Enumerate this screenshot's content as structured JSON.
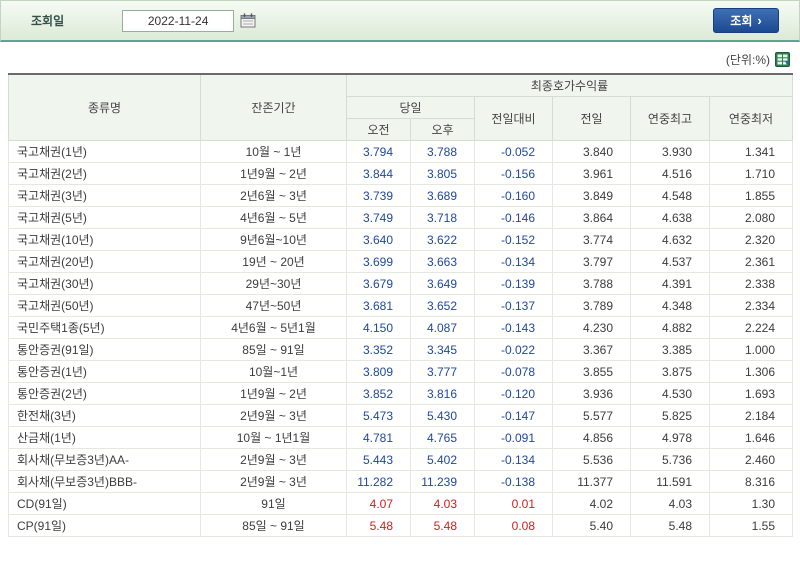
{
  "toolbar": {
    "date_label": "조회일",
    "date_value": "2022-11-24",
    "search_label": "조회",
    "search_arrow": "›"
  },
  "unit_label": "(단위:%)",
  "table": {
    "headers": {
      "type": "종류명",
      "period": "잔존기간",
      "yield_group": "최종호가수익률",
      "today": "당일",
      "am": "오전",
      "pm": "오후",
      "change": "전일대비",
      "prev": "전일",
      "year_high": "연중최고",
      "year_low": "연중최저"
    },
    "columns": [
      "type",
      "period",
      "am",
      "pm",
      "change",
      "prev",
      "high",
      "low"
    ],
    "rows": [
      {
        "type": "국고채권(1년)",
        "period": "10월 ~ 1년",
        "am": "3.794",
        "pm": "3.788",
        "change": "-0.052",
        "prev": "3.840",
        "high": "3.930",
        "low": "1.341",
        "trend": "down"
      },
      {
        "type": "국고채권(2년)",
        "period": "1년9월 ~ 2년",
        "am": "3.844",
        "pm": "3.805",
        "change": "-0.156",
        "prev": "3.961",
        "high": "4.516",
        "low": "1.710",
        "trend": "down"
      },
      {
        "type": "국고채권(3년)",
        "period": "2년6월 ~ 3년",
        "am": "3.739",
        "pm": "3.689",
        "change": "-0.160",
        "prev": "3.849",
        "high": "4.548",
        "low": "1.855",
        "trend": "down"
      },
      {
        "type": "국고채권(5년)",
        "period": "4년6월 ~ 5년",
        "am": "3.749",
        "pm": "3.718",
        "change": "-0.146",
        "prev": "3.864",
        "high": "4.638",
        "low": "2.080",
        "trend": "down"
      },
      {
        "type": "국고채권(10년)",
        "period": "9년6월~10년",
        "am": "3.640",
        "pm": "3.622",
        "change": "-0.152",
        "prev": "3.774",
        "high": "4.632",
        "low": "2.320",
        "trend": "down"
      },
      {
        "type": "국고채권(20년)",
        "period": "19년 ~ 20년",
        "am": "3.699",
        "pm": "3.663",
        "change": "-0.134",
        "prev": "3.797",
        "high": "4.537",
        "low": "2.361",
        "trend": "down"
      },
      {
        "type": "국고채권(30년)",
        "period": "29년~30년",
        "am": "3.679",
        "pm": "3.649",
        "change": "-0.139",
        "prev": "3.788",
        "high": "4.391",
        "low": "2.338",
        "trend": "down"
      },
      {
        "type": "국고채권(50년)",
        "period": "47년~50년",
        "am": "3.681",
        "pm": "3.652",
        "change": "-0.137",
        "prev": "3.789",
        "high": "4.348",
        "low": "2.334",
        "trend": "down"
      },
      {
        "type": "국민주택1종(5년)",
        "period": "4년6월 ~ 5년1월",
        "am": "4.150",
        "pm": "4.087",
        "change": "-0.143",
        "prev": "4.230",
        "high": "4.882",
        "low": "2.224",
        "trend": "down"
      },
      {
        "type": "통안증권(91일)",
        "period": "85일 ~ 91일",
        "am": "3.352",
        "pm": "3.345",
        "change": "-0.022",
        "prev": "3.367",
        "high": "3.385",
        "low": "1.000",
        "trend": "down"
      },
      {
        "type": "통안증권(1년)",
        "period": "10월~1년",
        "am": "3.809",
        "pm": "3.777",
        "change": "-0.078",
        "prev": "3.855",
        "high": "3.875",
        "low": "1.306",
        "trend": "down"
      },
      {
        "type": "통안증권(2년)",
        "period": "1년9월 ~ 2년",
        "am": "3.852",
        "pm": "3.816",
        "change": "-0.120",
        "prev": "3.936",
        "high": "4.530",
        "low": "1.693",
        "trend": "down"
      },
      {
        "type": "한전채(3년)",
        "period": "2년9월 ~ 3년",
        "am": "5.473",
        "pm": "5.430",
        "change": "-0.147",
        "prev": "5.577",
        "high": "5.825",
        "low": "2.184",
        "trend": "down"
      },
      {
        "type": "산금채(1년)",
        "period": "10월 ~ 1년1월",
        "am": "4.781",
        "pm": "4.765",
        "change": "-0.091",
        "prev": "4.856",
        "high": "4.978",
        "low": "1.646",
        "trend": "down"
      },
      {
        "type": "회사채(무보증3년)AA-",
        "period": "2년9월 ~ 3년",
        "am": "5.443",
        "pm": "5.402",
        "change": "-0.134",
        "prev": "5.536",
        "high": "5.736",
        "low": "2.460",
        "trend": "down"
      },
      {
        "type": "회사채(무보증3년)BBB-",
        "period": "2년9월 ~ 3년",
        "am": "11.282",
        "pm": "11.239",
        "change": "-0.138",
        "prev": "11.377",
        "high": "11.591",
        "low": "8.316",
        "trend": "down"
      },
      {
        "type": "CD(91일)",
        "period": "91일",
        "am": "4.07",
        "pm": "4.03",
        "change": "0.01",
        "prev": "4.02",
        "high": "4.03",
        "low": "1.30",
        "trend": "up"
      },
      {
        "type": "CP(91일)",
        "period": "85일 ~ 91일",
        "am": "5.48",
        "pm": "5.48",
        "change": "0.08",
        "prev": "5.40",
        "high": "5.48",
        "low": "1.55",
        "trend": "up"
      }
    ]
  }
}
